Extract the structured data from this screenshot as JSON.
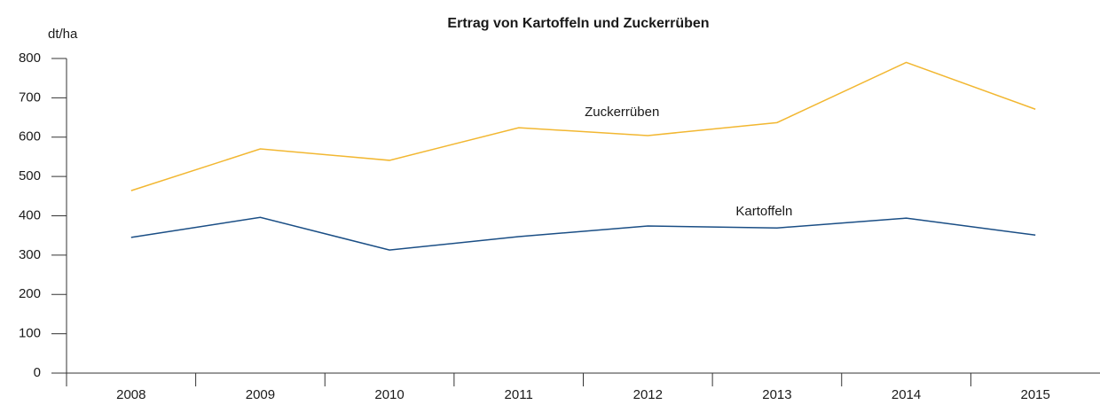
{
  "chart_data": {
    "type": "line",
    "title": "Ertrag von Kartoffeln und Zuckerrüben",
    "y_label": "dt/ha",
    "categories": [
      "2008",
      "2009",
      "2010",
      "2011",
      "2012",
      "2013",
      "2014",
      "2015"
    ],
    "series": [
      {
        "name": "Zuckerrüben",
        "color": "#f2b731",
        "values": [
          464,
          570,
          541,
          624,
          604,
          637,
          790,
          671
        ]
      },
      {
        "name": "Kartoffeln",
        "color": "#1a4e85",
        "values": [
          345,
          396,
          313,
          347,
          374,
          369,
          394,
          351
        ]
      }
    ],
    "ylim": [
      0,
      800
    ],
    "yticks": [
      0,
      100,
      200,
      300,
      400,
      500,
      600,
      700,
      800
    ],
    "grid": false
  }
}
